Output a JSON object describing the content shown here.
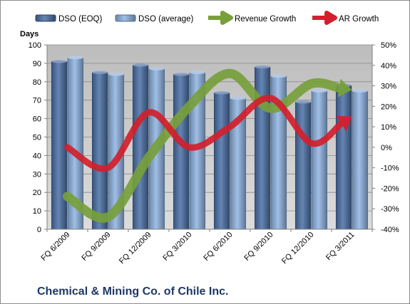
{
  "chart_data": {
    "type": "bar",
    "title": "Chemical & Mining Co. of Chile Inc.",
    "ylabel": "Days",
    "ylim": [
      0,
      100
    ],
    "y2lim": [
      -40,
      50
    ],
    "legend_position": "top",
    "grid": true,
    "categories": [
      "FQ 6/2009",
      "FQ 9/2009",
      "FQ 12/2009",
      "FQ 3/2010",
      "FQ 6/2010",
      "FQ 9/2010",
      "FQ 12/2010",
      "FQ 3/2011"
    ],
    "y_ticks": [
      "0",
      "10",
      "20",
      "30",
      "40",
      "50",
      "60",
      "70",
      "80",
      "90",
      "100"
    ],
    "y2_ticks": [
      "-40%",
      "-30%",
      "-20%",
      "-10%",
      "0%",
      "10%",
      "20%",
      "30%",
      "40%",
      "50%"
    ],
    "series": [
      {
        "name": "DSO (EOQ)",
        "kind": "bar",
        "axis": "left",
        "color": "#4a6fa5",
        "values": [
          91,
          85,
          89,
          84,
          74,
          88,
          69,
          78
        ]
      },
      {
        "name": "DSO (average)",
        "kind": "bar",
        "axis": "left",
        "color": "#8fb4e3",
        "values": [
          93,
          84,
          87,
          85,
          71,
          83,
          75,
          75
        ]
      },
      {
        "name": "Revenue Growth",
        "kind": "arrow-line",
        "axis": "right",
        "color": "#77a03c",
        "values": [
          -24,
          -34,
          -5,
          20,
          36,
          19,
          31,
          28
        ]
      },
      {
        "name": "AR Growth",
        "kind": "arrow-line",
        "axis": "right",
        "color": "#d3202c",
        "values": [
          0,
          -10,
          17,
          0,
          10,
          24,
          2,
          15
        ]
      }
    ]
  }
}
